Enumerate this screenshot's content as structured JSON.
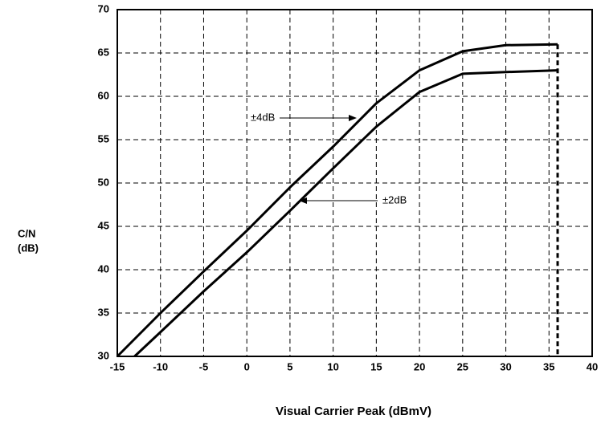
{
  "chart_data": {
    "type": "line",
    "x_label": "Visual Carrier Peak (dBmV)",
    "y_label": [
      "C/N",
      "(dB)"
    ],
    "xlim": [
      -15,
      40
    ],
    "xticks": [
      -15,
      -10,
      -5,
      0,
      5,
      10,
      15,
      20,
      25,
      30,
      35,
      40
    ],
    "ylim": [
      30,
      70
    ],
    "yticks": [
      30,
      35,
      40,
      45,
      50,
      55,
      60,
      65,
      70
    ],
    "grid": true,
    "vline": 36,
    "series": [
      {
        "name": "±4dB",
        "color": "#000000",
        "x": [
          -15,
          -10,
          -5,
          0,
          5,
          10,
          15,
          20,
          25,
          30,
          36
        ],
        "values": [
          30,
          35,
          39.8,
          44.5,
          49.5,
          54.2,
          59.2,
          63,
          65.2,
          65.9,
          66
        ]
      },
      {
        "name": "±2dB",
        "color": "#000000",
        "x": [
          -13,
          -10,
          -5,
          0,
          5,
          10,
          15,
          20,
          25,
          30,
          36
        ],
        "values": [
          30,
          32.8,
          37.5,
          42,
          46.8,
          51.7,
          56.5,
          60.5,
          62.6,
          62.8,
          63
        ]
      }
    ]
  }
}
